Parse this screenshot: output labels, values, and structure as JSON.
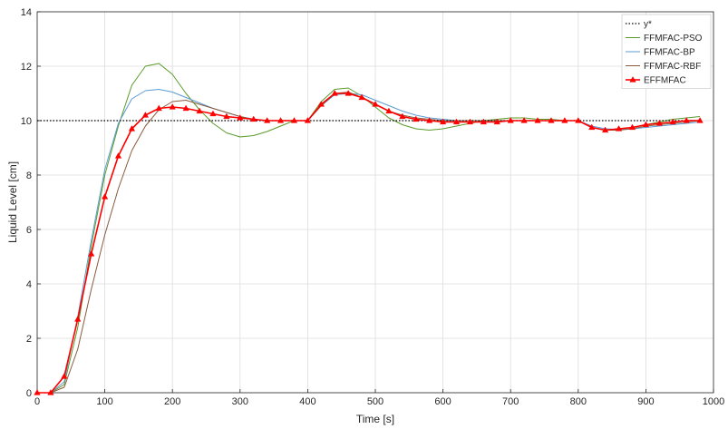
{
  "chart_data": {
    "type": "line",
    "title": "",
    "xlabel": "Time [s]",
    "ylabel": "Liquid Level [cm]",
    "xlim": [
      0,
      1000
    ],
    "ylim": [
      0,
      14
    ],
    "xticks": [
      0,
      100,
      200,
      300,
      400,
      500,
      600,
      700,
      800,
      900,
      1000
    ],
    "yticks": [
      0,
      2,
      4,
      6,
      8,
      10,
      12,
      14
    ],
    "grid": true,
    "legend_position": "top-right",
    "series": [
      {
        "name": "y*",
        "color": "#000000",
        "style": "dotted",
        "x": [
          0,
          980
        ],
        "y": [
          10,
          10
        ]
      },
      {
        "name": "FFMFAC-PSO",
        "color": "#5a9a2a",
        "style": "solid",
        "x": [
          0,
          20,
          40,
          60,
          80,
          100,
          120,
          140,
          160,
          180,
          200,
          220,
          240,
          260,
          280,
          300,
          320,
          340,
          360,
          380,
          400,
          420,
          440,
          460,
          480,
          500,
          520,
          540,
          560,
          580,
          600,
          620,
          640,
          660,
          680,
          700,
          720,
          740,
          760,
          780,
          800,
          820,
          840,
          860,
          880,
          900,
          920,
          940,
          960,
          980
        ],
        "y": [
          0,
          0,
          0.3,
          2.4,
          5.4,
          8.0,
          9.8,
          11.3,
          12.0,
          12.1,
          11.7,
          11.0,
          10.4,
          9.9,
          9.55,
          9.4,
          9.45,
          9.6,
          9.8,
          10.0,
          10.0,
          10.7,
          11.15,
          11.2,
          10.9,
          10.5,
          10.1,
          9.85,
          9.7,
          9.65,
          9.7,
          9.8,
          9.9,
          10.0,
          10.05,
          10.1,
          10.1,
          10.05,
          10.05,
          10.0,
          10.0,
          9.75,
          9.65,
          9.7,
          9.75,
          9.85,
          9.95,
          10.05,
          10.1,
          10.15
        ]
      },
      {
        "name": "FFMFAC-BP",
        "color": "#5b9bd5",
        "style": "solid",
        "x": [
          0,
          20,
          40,
          60,
          80,
          100,
          120,
          140,
          160,
          180,
          200,
          220,
          240,
          260,
          280,
          300,
          320,
          340,
          360,
          380,
          400,
          420,
          440,
          460,
          480,
          500,
          520,
          540,
          560,
          580,
          600,
          620,
          640,
          660,
          680,
          700,
          720,
          740,
          760,
          780,
          800,
          820,
          840,
          860,
          880,
          900,
          920,
          940,
          960,
          980
        ],
        "y": [
          0,
          0,
          0.4,
          2.8,
          5.6,
          8.2,
          9.9,
          10.8,
          11.1,
          11.15,
          11.05,
          10.85,
          10.65,
          10.45,
          10.3,
          10.15,
          10.05,
          10.0,
          10.0,
          10.0,
          10.0,
          10.55,
          10.95,
          11.0,
          10.95,
          10.75,
          10.55,
          10.35,
          10.2,
          10.1,
          10.05,
          10.0,
          10.0,
          10.0,
          10.0,
          10.0,
          10.0,
          10.0,
          10.0,
          10.0,
          10.0,
          9.8,
          9.7,
          9.68,
          9.7,
          9.75,
          9.8,
          9.85,
          9.9,
          9.95
        ]
      },
      {
        "name": "FFMFAC-RBF",
        "color": "#8b5a3c",
        "style": "solid",
        "x": [
          0,
          20,
          40,
          60,
          80,
          100,
          120,
          140,
          160,
          180,
          200,
          220,
          240,
          260,
          280,
          300,
          320,
          340,
          360,
          380,
          400,
          420,
          440,
          460,
          480,
          500,
          520,
          540,
          560,
          580,
          600,
          620,
          640,
          660,
          680,
          700,
          720,
          740,
          760,
          780,
          800,
          820,
          840,
          860,
          880,
          900,
          920,
          940,
          960,
          980
        ],
        "y": [
          0,
          0,
          0.2,
          1.6,
          3.8,
          5.8,
          7.5,
          8.9,
          9.8,
          10.4,
          10.7,
          10.75,
          10.6,
          10.45,
          10.3,
          10.15,
          10.05,
          10.0,
          10.0,
          10.0,
          10.0,
          10.55,
          11.0,
          11.05,
          10.85,
          10.6,
          10.35,
          10.2,
          10.1,
          10.05,
          10.0,
          10.0,
          10.0,
          10.0,
          10.0,
          10.0,
          10.0,
          10.0,
          10.0,
          10.0,
          10.0,
          9.75,
          9.65,
          9.65,
          9.7,
          9.8,
          9.85,
          9.9,
          9.95,
          10.0
        ]
      },
      {
        "name": "EFFMFAC",
        "color": "#ff0000",
        "style": "solid-marker-triangle",
        "x": [
          0,
          20,
          40,
          60,
          80,
          100,
          120,
          140,
          160,
          180,
          200,
          220,
          240,
          260,
          280,
          300,
          320,
          340,
          360,
          380,
          400,
          420,
          440,
          460,
          480,
          500,
          520,
          540,
          560,
          580,
          600,
          620,
          640,
          660,
          680,
          700,
          720,
          740,
          760,
          780,
          800,
          820,
          840,
          860,
          880,
          900,
          920,
          940,
          960,
          980
        ],
        "y": [
          0,
          0,
          0.6,
          2.7,
          5.1,
          7.2,
          8.7,
          9.7,
          10.2,
          10.45,
          10.5,
          10.45,
          10.35,
          10.25,
          10.15,
          10.1,
          10.05,
          10.0,
          10.0,
          10.0,
          10.0,
          10.6,
          11.0,
          11.0,
          10.85,
          10.6,
          10.35,
          10.15,
          10.05,
          10.0,
          9.95,
          9.95,
          9.95,
          9.95,
          9.95,
          10.0,
          10.0,
          10.0,
          10.0,
          10.0,
          10.0,
          9.75,
          9.65,
          9.7,
          9.75,
          9.85,
          9.9,
          9.95,
          10.0,
          10.0
        ]
      }
    ]
  }
}
